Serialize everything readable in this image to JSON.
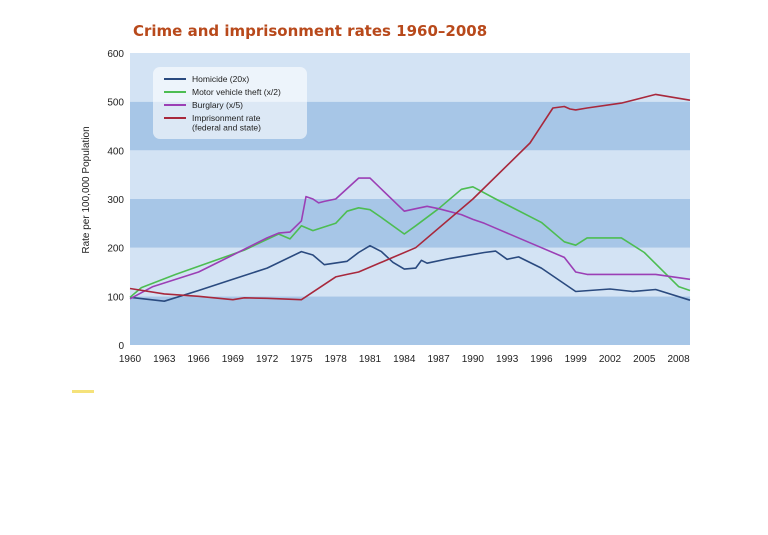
{
  "chart_data": {
    "type": "line",
    "title": "Crime and imprisonment rates 1960–2008",
    "xlabel": "",
    "ylabel": "Rate per 100,000 Population",
    "xlim": [
      1960,
      2009
    ],
    "ylim": [
      0,
      600
    ],
    "x_ticks": [
      1960,
      1963,
      1966,
      1969,
      1972,
      1975,
      1978,
      1981,
      1984,
      1987,
      1990,
      1993,
      1996,
      1999,
      2002,
      2005,
      2008
    ],
    "y_ticks": [
      0,
      100,
      200,
      300,
      400,
      500,
      600
    ],
    "background_bands": [
      "#a7c6e7",
      "#d3e3f4"
    ],
    "legend_position": "top-left",
    "series": [
      {
        "name": "Homicide (20x)",
        "color": "#2a4a7f",
        "points": [
          [
            1960,
            98
          ],
          [
            1963,
            90
          ],
          [
            1966,
            112
          ],
          [
            1969,
            135
          ],
          [
            1972,
            158
          ],
          [
            1975,
            192
          ],
          [
            1976,
            185
          ],
          [
            1977,
            165
          ],
          [
            1979,
            172
          ],
          [
            1980,
            190
          ],
          [
            1981,
            204
          ],
          [
            1982,
            192
          ],
          [
            1983,
            170
          ],
          [
            1984,
            156
          ],
          [
            1985,
            158
          ],
          [
            1985.5,
            174
          ],
          [
            1986,
            168
          ],
          [
            1988,
            178
          ],
          [
            1991,
            190
          ],
          [
            1992,
            193
          ],
          [
            1993,
            176
          ],
          [
            1994,
            181
          ],
          [
            1996,
            158
          ],
          [
            1999,
            110
          ],
          [
            2002,
            115
          ],
          [
            2004,
            110
          ],
          [
            2006,
            114
          ],
          [
            2009,
            92
          ]
        ]
      },
      {
        "name": "Motor vehicle theft (x/2)",
        "color": "#4dbd52",
        "points": [
          [
            1960,
            98
          ],
          [
            1961,
            118
          ],
          [
            1964,
            145
          ],
          [
            1967,
            170
          ],
          [
            1970,
            195
          ],
          [
            1973,
            228
          ],
          [
            1974,
            218
          ],
          [
            1975,
            245
          ],
          [
            1976,
            235
          ],
          [
            1978,
            250
          ],
          [
            1979,
            275
          ],
          [
            1980,
            282
          ],
          [
            1981,
            278
          ],
          [
            1982,
            262
          ],
          [
            1984,
            228
          ],
          [
            1985,
            245
          ],
          [
            1987,
            280
          ],
          [
            1989,
            320
          ],
          [
            1990,
            325
          ],
          [
            1992,
            300
          ],
          [
            1996,
            252
          ],
          [
            1998,
            212
          ],
          [
            1999,
            205
          ],
          [
            2000,
            220
          ],
          [
            2003,
            220
          ],
          [
            2005,
            190
          ],
          [
            2008,
            120
          ],
          [
            2009,
            112
          ]
        ]
      },
      {
        "name": "Burglary (x/5)",
        "color": "#9b3fb5",
        "points": [
          [
            1960,
            95
          ],
          [
            1962,
            120
          ],
          [
            1966,
            150
          ],
          [
            1969,
            185
          ],
          [
            1972,
            220
          ],
          [
            1973,
            230
          ],
          [
            1974,
            232
          ],
          [
            1975,
            255
          ],
          [
            1975.4,
            305
          ],
          [
            1976,
            300
          ],
          [
            1976.5,
            292
          ],
          [
            1977,
            295
          ],
          [
            1978,
            300
          ],
          [
            1980,
            343
          ],
          [
            1981,
            343
          ],
          [
            1984,
            275
          ],
          [
            1985,
            280
          ],
          [
            1986,
            285
          ],
          [
            1987,
            280
          ],
          [
            1989,
            268
          ],
          [
            1990,
            258
          ],
          [
            1991,
            250
          ],
          [
            1992,
            240
          ],
          [
            1995,
            210
          ],
          [
            1998,
            180
          ],
          [
            1999,
            150
          ],
          [
            2000,
            145
          ],
          [
            2003,
            145
          ],
          [
            2006,
            145
          ],
          [
            2009,
            135
          ]
        ]
      },
      {
        "name": "Imprisonment rate (federal and state)",
        "color": "#a8283c",
        "points": [
          [
            1960,
            116
          ],
          [
            1963,
            105
          ],
          [
            1966,
            100
          ],
          [
            1969,
            93
          ],
          [
            1970,
            97
          ],
          [
            1972,
            96
          ],
          [
            1975,
            93
          ],
          [
            1978,
            140
          ],
          [
            1979,
            145
          ],
          [
            1980,
            150
          ],
          [
            1983,
            180
          ],
          [
            1985,
            200
          ],
          [
            1990,
            300
          ],
          [
            1995,
            415
          ],
          [
            1997,
            487
          ],
          [
            1998,
            490
          ],
          [
            1998.5,
            485
          ],
          [
            1999,
            483
          ],
          [
            2000,
            487
          ],
          [
            2003,
            497
          ],
          [
            2006,
            515
          ],
          [
            2009,
            503
          ]
        ]
      }
    ]
  }
}
